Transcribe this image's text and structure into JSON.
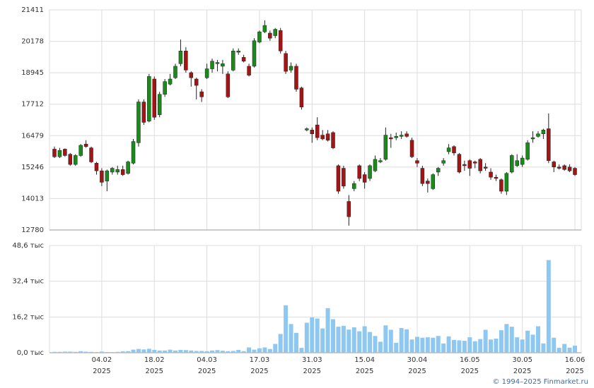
{
  "chart_data": [
    {
      "type": "candlestick",
      "open": [
        15950,
        15650,
        15950,
        15750,
        15350,
        15700,
        16150,
        16000,
        15400,
        15100,
        14700,
        15050,
        15050,
        15150,
        15000,
        15400,
        16200,
        17800,
        17050,
        18700,
        17300,
        18100,
        18500,
        18750,
        19300,
        19800,
        18950,
        18700,
        18200,
        18750,
        19100,
        19300,
        19200,
        18900,
        19050,
        19750,
        19550,
        19200,
        19200,
        20150,
        20550,
        20500,
        20400,
        20600,
        19700,
        19050,
        19200,
        18350,
        16700,
        16700,
        16900,
        16500,
        16550,
        16600,
        15300,
        15200,
        13900,
        14400,
        15300,
        14950,
        14800,
        15100,
        15450,
        15550,
        16400,
        16400,
        16450,
        16550,
        16300,
        15500,
        15200,
        14700,
        14400,
        15050,
        15400,
        15850,
        16050,
        15750,
        15350,
        15500,
        15450,
        15550,
        15250,
        15050,
        14850,
        14750,
        14300,
        15050,
        15300,
        15350,
        15550,
        16350,
        16450,
        16550,
        16750,
        15450,
        15250,
        15300,
        15250,
        15200
      ],
      "high": [
        16050,
        16000,
        15980,
        15800,
        15750,
        16150,
        16300,
        16050,
        15450,
        15200,
        15150,
        15250,
        15300,
        15300,
        15500,
        16350,
        17900,
        17900,
        18900,
        18800,
        18200,
        18700,
        18900,
        19300,
        20250,
        19950,
        19000,
        18750,
        18300,
        19300,
        19500,
        19450,
        19450,
        19000,
        19900,
        19900,
        19650,
        19300,
        20300,
        20600,
        21000,
        20600,
        20700,
        20700,
        19800,
        19350,
        19300,
        18400,
        16800,
        16800,
        17200,
        16700,
        16700,
        16650,
        15350,
        15300,
        14150,
        14700,
        15350,
        15050,
        15350,
        15700,
        15600,
        16800,
        16550,
        16600,
        16650,
        16650,
        16400,
        15600,
        15300,
        14800,
        15000,
        15250,
        15600,
        16150,
        16100,
        15800,
        15500,
        15550,
        15500,
        15600,
        15400,
        15200,
        14950,
        14800,
        15050,
        15750,
        15750,
        15700,
        16300,
        16650,
        16650,
        16750,
        17350,
        15500,
        15350,
        15350,
        15350,
        15250
      ],
      "low": [
        15600,
        15600,
        15650,
        15300,
        15300,
        15650,
        16000,
        15400,
        14950,
        14500,
        14300,
        14950,
        14950,
        14900,
        14950,
        15350,
        16050,
        16900,
        17000,
        17100,
        17200,
        18000,
        18450,
        18700,
        19200,
        18950,
        18400,
        17900,
        17800,
        18700,
        18950,
        19000,
        18900,
        17950,
        19000,
        19650,
        19350,
        18800,
        19150,
        20100,
        20500,
        20200,
        20300,
        19700,
        18900,
        18950,
        18200,
        17500,
        16650,
        16200,
        16300,
        16300,
        16250,
        15950,
        14200,
        14400,
        12950,
        14300,
        14700,
        14400,
        14700,
        15050,
        15400,
        15500,
        16000,
        16300,
        16350,
        16400,
        15600,
        15250,
        14500,
        14250,
        14350,
        14900,
        15300,
        15750,
        15700,
        15000,
        15100,
        14900,
        15200,
        15000,
        15100,
        14750,
        14700,
        14200,
        14150,
        15000,
        15250,
        15250,
        15500,
        16200,
        16400,
        16350,
        15400,
        15050,
        15150,
        15100,
        15050,
        14900
      ],
      "close": [
        15650,
        15900,
        15700,
        15350,
        15700,
        16100,
        16050,
        15450,
        15100,
        14650,
        15100,
        15200,
        15150,
        14950,
        15450,
        16250,
        17800,
        17000,
        18800,
        17200,
        18100,
        18600,
        18700,
        19200,
        19800,
        19050,
        18750,
        18450,
        18000,
        19100,
        19400,
        19350,
        19300,
        18000,
        19800,
        19800,
        19400,
        18850,
        20200,
        20550,
        20800,
        20300,
        20650,
        19800,
        19000,
        19200,
        18300,
        17600,
        16750,
        16550,
        16400,
        16350,
        16300,
        16000,
        14300,
        14500,
        13300,
        14600,
        14800,
        14650,
        15300,
        15550,
        15500,
        16500,
        16350,
        16450,
        16500,
        16450,
        15650,
        15400,
        14600,
        14600,
        14950,
        15200,
        15500,
        16000,
        15800,
        15050,
        15300,
        15200,
        15400,
        15100,
        15200,
        14850,
        14800,
        14300,
        15000,
        15700,
        15500,
        15600,
        16200,
        16400,
        16550,
        16700,
        15500,
        15250,
        15200,
        15150,
        15100,
        14950
      ],
      "up_color": "#1a8a1a",
      "down_color": "#a31515",
      "ylim": [
        12780,
        21411
      ],
      "yticks": [
        12780,
        14013,
        15246,
        16479,
        17712,
        18945,
        20178,
        21411
      ],
      "grid": true
    },
    {
      "type": "bar",
      "categories": [
        null,
        null,
        null,
        null,
        null,
        null,
        null,
        null,
        null,
        "04.02\n2025",
        null,
        null,
        null,
        null,
        null,
        null,
        null,
        null,
        null,
        "18.02\n2025",
        null,
        null,
        null,
        null,
        null,
        null,
        null,
        null,
        null,
        "04.03\n2025",
        null,
        null,
        null,
        null,
        null,
        null,
        null,
        null,
        null,
        "17.03\n2025",
        null,
        null,
        null,
        null,
        null,
        null,
        null,
        null,
        null,
        "31.03\n2025",
        null,
        null,
        null,
        null,
        null,
        null,
        null,
        null,
        null,
        "15.04\n2025",
        null,
        null,
        null,
        null,
        null,
        null,
        null,
        null,
        null,
        "30.04\n2025",
        null,
        null,
        null,
        null,
        null,
        null,
        null,
        null,
        null,
        "16.05\n2025",
        null,
        null,
        null,
        null,
        null,
        null,
        null,
        null,
        null,
        "30.05\n2025",
        null,
        null,
        null,
        null,
        null,
        null,
        null,
        null,
        null,
        "16.06\n2025"
      ],
      "values": [
        400,
        400,
        500,
        500,
        400,
        700,
        500,
        400,
        300,
        500,
        300,
        300,
        400,
        600,
        700,
        1400,
        1700,
        1500,
        1800,
        1300,
        1000,
        1000,
        1400,
        1000,
        1300,
        1200,
        1000,
        800,
        800,
        700,
        1000,
        1200,
        900,
        700,
        800,
        1300,
        700,
        2400,
        1400,
        2000,
        2400,
        1700,
        4000,
        8500,
        21500,
        13000,
        9000,
        2200,
        13600,
        16000,
        15500,
        11000,
        20200,
        15200,
        11800,
        12200,
        10500,
        11500,
        9700,
        12000,
        9400,
        7600,
        5000,
        12400,
        10400,
        4500,
        11200,
        10600,
        6000,
        7200,
        6800,
        7000,
        6800,
        7600,
        4200,
        7400,
        5800,
        5600,
        5400,
        7000,
        5200,
        6200,
        10400,
        6000,
        6400,
        10200,
        13000,
        11800,
        7000,
        6000,
        10000,
        8200,
        12000,
        4200,
        42000,
        6800,
        2200,
        4000,
        2300,
        3200
      ],
      "color": "#8ec8f0",
      "ylim": [
        0,
        48600
      ],
      "yticks": [
        {
          "value": 0,
          "label": "0,0 тыс"
        },
        {
          "value": 16200,
          "label": "16,2 тыс"
        },
        {
          "value": 32400,
          "label": "32,4 тыс"
        },
        {
          "value": 48600,
          "label": "48,6 тыс"
        }
      ],
      "grid": true
    }
  ],
  "source": "© 1994–2025 Finmarket.ru"
}
